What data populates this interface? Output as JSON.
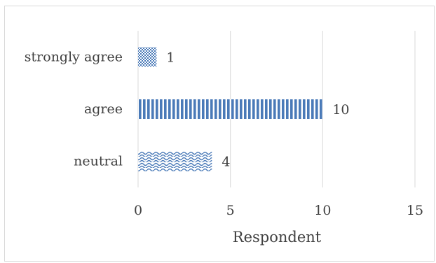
{
  "chart_data": {
    "type": "bar",
    "orientation": "horizontal",
    "categories": [
      "neutral",
      "agree",
      "strongly agree"
    ],
    "values": [
      4,
      10,
      1
    ],
    "data_labels": [
      "4",
      "10",
      "1"
    ],
    "xlabel": "Respondent",
    "ylabel": "",
    "xlim": [
      0,
      15
    ],
    "x_ticks": [
      0,
      5,
      10,
      15
    ],
    "x_tick_labels": [
      "0",
      "5",
      "10",
      "15"
    ],
    "grid": "vertical",
    "legend": "none",
    "bar_color": "#4a7ab8",
    "bar_patterns": [
      "waves",
      "vertical-stripes",
      "checker"
    ]
  }
}
